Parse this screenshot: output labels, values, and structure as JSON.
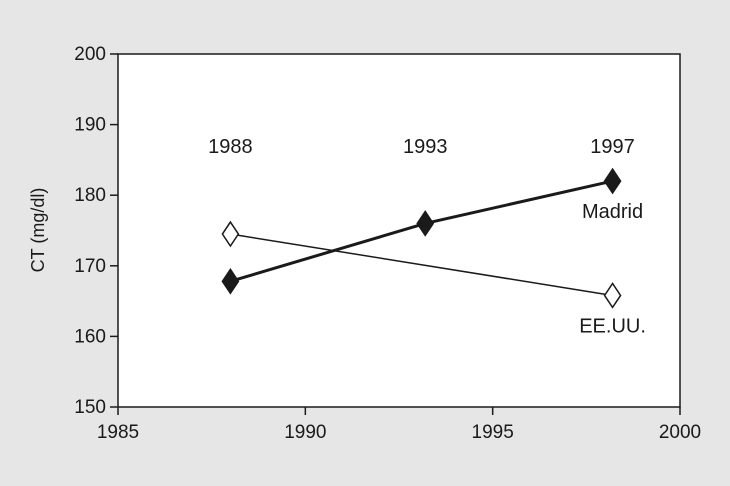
{
  "chart_data": {
    "type": "line",
    "title": "",
    "xlabel": "",
    "ylabel": "CT (mg/dl)",
    "xlim": [
      1985,
      2000
    ],
    "ylim": [
      150,
      200
    ],
    "xticks": [
      1985,
      1990,
      1995,
      2000
    ],
    "yticks": [
      150,
      160,
      170,
      180,
      190,
      200
    ],
    "grid": false,
    "series": [
      {
        "name": "Madrid",
        "x": [
          1988,
          1993.2,
          1998.2
        ],
        "y": [
          167.8,
          176,
          182
        ],
        "marker": "filled-diamond",
        "color": "#1a1a1a"
      },
      {
        "name": "EE.UU.",
        "x": [
          1988,
          1998.2
        ],
        "y": [
          174.5,
          165.8
        ],
        "marker": "open-diamond",
        "color": "#1a1a1a"
      }
    ],
    "annotations": [
      {
        "text": "1988",
        "x": 1988,
        "y": 187
      },
      {
        "text": "1993",
        "x": 1993.2,
        "y": 187
      },
      {
        "text": "1997",
        "x": 1998.2,
        "y": 187
      }
    ]
  }
}
